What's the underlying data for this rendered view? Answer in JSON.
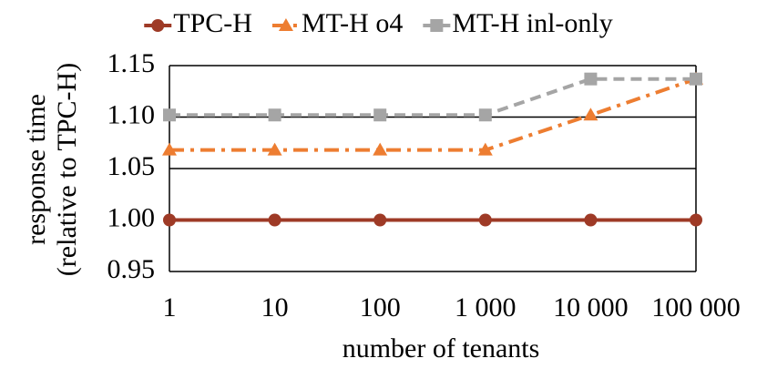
{
  "chart_data": {
    "type": "line",
    "y_label": [
      "response time",
      "(relative to TPC-H)"
    ],
    "x_label": "number of tenants",
    "categories": [
      "1",
      "10",
      "100",
      "1 000",
      "10 000",
      "100 000"
    ],
    "series": [
      {
        "name": "TPC-H",
        "color": "#9e3a26",
        "line_style": "solid",
        "marker": "circle",
        "values": [
          1.0,
          1.0,
          1.0,
          1.0,
          1.0,
          1.0
        ]
      },
      {
        "name": "MT-H o4",
        "color": "#ed7d31",
        "line_style": "dashdot",
        "marker": "triangle",
        "values": [
          1.068,
          1.068,
          1.068,
          1.068,
          1.102,
          1.137
        ]
      },
      {
        "name": "MT-H inl-only",
        "color": "#a5a5a5",
        "line_style": "dashed",
        "marker": "square",
        "values": [
          1.102,
          1.102,
          1.102,
          1.102,
          1.137,
          1.137
        ]
      }
    ],
    "ylim": [
      0.95,
      1.15
    ],
    "yticks": [
      0.95,
      {
        "value": 1.0,
        "label": "1.00"
      },
      1.05,
      {
        "value": 1.1,
        "label": "1.10"
      },
      1.15
    ],
    "grid": true,
    "legend": "top"
  }
}
